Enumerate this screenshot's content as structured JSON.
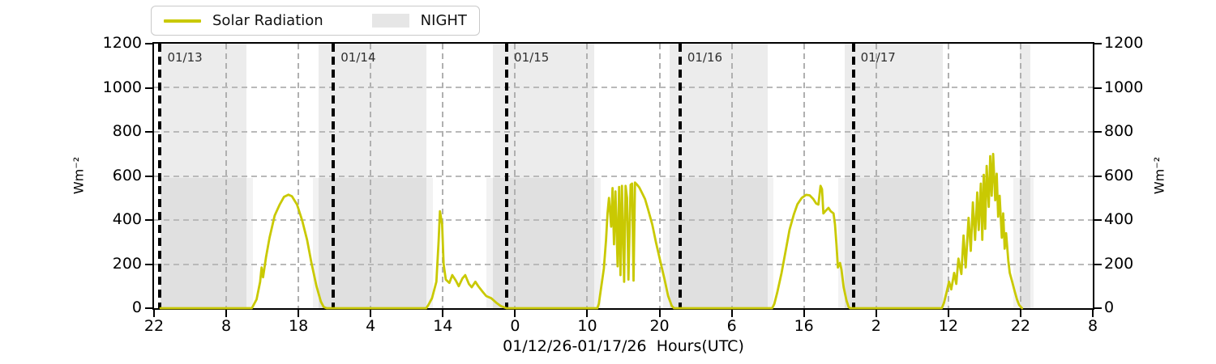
{
  "chart_data": {
    "type": "line",
    "title": "",
    "xlabel": "01/12/26-01/17/26  Hours(UTC)",
    "ylabel_left": "Wm⁻²",
    "ylabel_right": "Wm⁻²",
    "ylim": [
      0,
      1200
    ],
    "y_ticks": [
      0,
      200,
      400,
      600,
      800,
      1000,
      1200
    ],
    "x_span_hours": 130,
    "x_tick_step_hours": 10,
    "x_tick_labels": [
      "22",
      "8",
      "18",
      "4",
      "14",
      "0",
      "10",
      "20",
      "6",
      "16",
      "2",
      "12",
      "22",
      "8"
    ],
    "grid": true,
    "legend": {
      "position": "top-left",
      "entries": [
        "Solar Radiation",
        "NIGHT"
      ]
    },
    "colors": {
      "solar_line": "#c9c902",
      "night_fill": "#e8e8e8",
      "grid": "#b0b0b0",
      "day_line": "#000000"
    },
    "day_lines": [
      {
        "h": 0.84,
        "label": "01/13"
      },
      {
        "h": 24.84,
        "label": "01/14"
      },
      {
        "h": 48.84,
        "label": "01/15"
      },
      {
        "h": 72.84,
        "label": "01/16"
      },
      {
        "h": 96.84,
        "label": "01/17"
      }
    ],
    "night_spans_full": [
      [
        0.9,
        12.77
      ],
      [
        22.84,
        37.74
      ],
      [
        46.92,
        60.92
      ],
      [
        71.44,
        84.99
      ],
      [
        95.63,
        109.18
      ],
      [
        119.93,
        121.39
      ]
    ],
    "night_spans_low": [
      [
        0.9,
        13.66
      ],
      [
        21.95,
        38.63
      ],
      [
        46.02,
        61.81
      ],
      [
        70.55,
        85.78
      ],
      [
        94.74,
        110.08
      ],
      [
        119.04,
        121.84
      ]
    ],
    "night_low_top_value": 590,
    "series": [
      {
        "name": "Solar Radiation",
        "color": "#c9c902",
        "points": [
          [
            0.9,
            0
          ],
          [
            13.55,
            0
          ],
          [
            14.2,
            40
          ],
          [
            14.7,
            120
          ],
          [
            14.9,
            185
          ],
          [
            15.1,
            140
          ],
          [
            15.5,
            230
          ],
          [
            16.0,
            320
          ],
          [
            16.7,
            420
          ],
          [
            17.4,
            470
          ],
          [
            18.0,
            505
          ],
          [
            18.6,
            515
          ],
          [
            19.1,
            508
          ],
          [
            19.8,
            470
          ],
          [
            20.5,
            400
          ],
          [
            21.2,
            310
          ],
          [
            21.8,
            205
          ],
          [
            22.5,
            100
          ],
          [
            23.1,
            30
          ],
          [
            23.5,
            5
          ],
          [
            23.9,
            0
          ],
          [
            37.7,
            0
          ],
          [
            38.0,
            15
          ],
          [
            38.5,
            45
          ],
          [
            39.1,
            120
          ],
          [
            39.4,
            300
          ],
          [
            39.6,
            440
          ],
          [
            39.9,
            380
          ],
          [
            40.1,
            200
          ],
          [
            40.4,
            130
          ],
          [
            40.9,
            115
          ],
          [
            41.3,
            150
          ],
          [
            41.8,
            125
          ],
          [
            42.2,
            100
          ],
          [
            42.7,
            135
          ],
          [
            43.1,
            150
          ],
          [
            43.6,
            110
          ],
          [
            44.0,
            95
          ],
          [
            44.5,
            120
          ],
          [
            44.9,
            100
          ],
          [
            45.5,
            75
          ],
          [
            46.0,
            55
          ],
          [
            46.7,
            45
          ],
          [
            47.4,
            25
          ],
          [
            48.0,
            10
          ],
          [
            48.8,
            0
          ],
          [
            61.4,
            0
          ],
          [
            61.6,
            20
          ],
          [
            61.9,
            90
          ],
          [
            62.3,
            180
          ],
          [
            62.6,
            310
          ],
          [
            62.8,
            430
          ],
          [
            63.0,
            500
          ],
          [
            63.3,
            370
          ],
          [
            63.5,
            545
          ],
          [
            63.7,
            290
          ],
          [
            63.9,
            530
          ],
          [
            64.2,
            190
          ],
          [
            64.4,
            550
          ],
          [
            64.6,
            150
          ],
          [
            64.8,
            555
          ],
          [
            65.1,
            120
          ],
          [
            65.3,
            555
          ],
          [
            65.5,
            500
          ],
          [
            65.7,
            130
          ],
          [
            66.0,
            560
          ],
          [
            66.2,
            565
          ],
          [
            66.4,
            125
          ],
          [
            66.6,
            570
          ],
          [
            66.9,
            560
          ],
          [
            67.2,
            548
          ],
          [
            67.5,
            528
          ],
          [
            68.0,
            495
          ],
          [
            68.4,
            450
          ],
          [
            69.0,
            380
          ],
          [
            69.5,
            300
          ],
          [
            70.1,
            215
          ],
          [
            70.7,
            130
          ],
          [
            71.2,
            55
          ],
          [
            71.7,
            10
          ],
          [
            72.0,
            0
          ],
          [
            85.6,
            0
          ],
          [
            85.9,
            20
          ],
          [
            86.3,
            70
          ],
          [
            86.9,
            160
          ],
          [
            87.5,
            265
          ],
          [
            88.0,
            355
          ],
          [
            88.6,
            425
          ],
          [
            89.1,
            472
          ],
          [
            89.7,
            500
          ],
          [
            90.3,
            514
          ],
          [
            90.8,
            512
          ],
          [
            91.3,
            495
          ],
          [
            91.7,
            475
          ],
          [
            92.0,
            470
          ],
          [
            92.3,
            555
          ],
          [
            92.5,
            540
          ],
          [
            92.7,
            430
          ],
          [
            93.1,
            445
          ],
          [
            93.4,
            455
          ],
          [
            93.7,
            440
          ],
          [
            94.1,
            430
          ],
          [
            94.3,
            380
          ],
          [
            94.5,
            290
          ],
          [
            94.7,
            185
          ],
          [
            95.0,
            205
          ],
          [
            95.2,
            175
          ],
          [
            95.5,
            95
          ],
          [
            95.9,
            35
          ],
          [
            96.2,
            5
          ],
          [
            96.4,
            0
          ],
          [
            109.1,
            0
          ],
          [
            109.4,
            25
          ],
          [
            109.7,
            65
          ],
          [
            110.1,
            120
          ],
          [
            110.4,
            85
          ],
          [
            110.8,
            160
          ],
          [
            111.1,
            110
          ],
          [
            111.4,
            225
          ],
          [
            111.8,
            155
          ],
          [
            112.1,
            330
          ],
          [
            112.4,
            185
          ],
          [
            112.8,
            410
          ],
          [
            113.1,
            260
          ],
          [
            113.4,
            480
          ],
          [
            113.7,
            310
          ],
          [
            114.0,
            525
          ],
          [
            114.2,
            355
          ],
          [
            114.5,
            565
          ],
          [
            114.7,
            310
          ],
          [
            114.9,
            605
          ],
          [
            115.1,
            360
          ],
          [
            115.3,
            645
          ],
          [
            115.6,
            460
          ],
          [
            115.8,
            690
          ],
          [
            116.0,
            510
          ],
          [
            116.2,
            700
          ],
          [
            116.5,
            490
          ],
          [
            116.7,
            610
          ],
          [
            116.9,
            415
          ],
          [
            117.1,
            510
          ],
          [
            117.4,
            320
          ],
          [
            117.6,
            430
          ],
          [
            117.8,
            270
          ],
          [
            118.0,
            340
          ],
          [
            118.3,
            215
          ],
          [
            118.5,
            160
          ],
          [
            118.8,
            125
          ],
          [
            119.2,
            75
          ],
          [
            119.5,
            40
          ],
          [
            119.8,
            15
          ],
          [
            120.2,
            0
          ]
        ]
      }
    ]
  }
}
